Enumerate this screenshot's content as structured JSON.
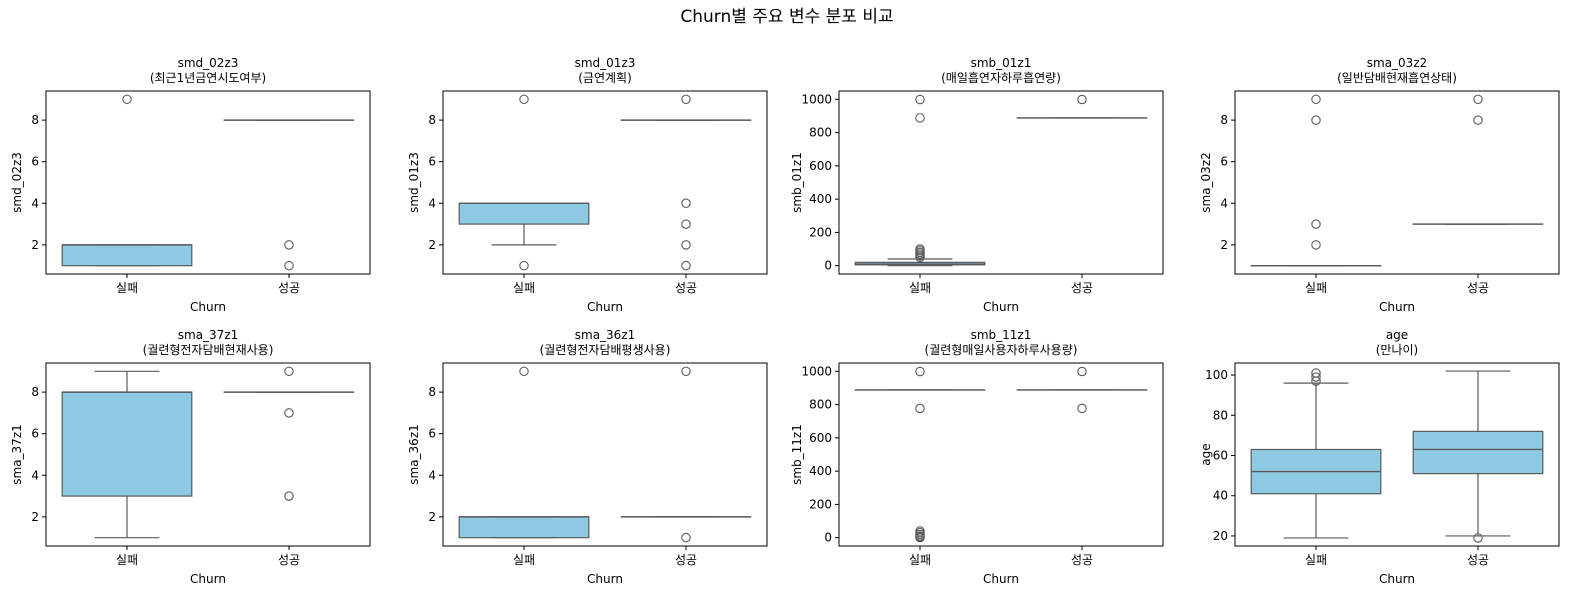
{
  "figure_title": "Churn별 주요 변수 분포 비교",
  "colors": {
    "box_fill": "#8ecae4",
    "line": "#5a5a5a",
    "frame": "#000000"
  },
  "chart_data": [
    {
      "type": "box",
      "title_line1": "smd_02z3",
      "title_line2": "(최근1년금연시도여부)",
      "xlabel": "Churn",
      "ylabel": "smd_02z3",
      "categories": [
        "실패",
        "성공"
      ],
      "ylim": [
        0.6,
        9.4
      ],
      "yticks": [
        2,
        4,
        6,
        8
      ],
      "boxes": [
        {
          "q1": 1,
          "median": 2,
          "q3": 2,
          "whisker_low": 1,
          "whisker_high": 2,
          "outliers": [
            9
          ]
        },
        {
          "q1": 8,
          "median": 8,
          "q3": 8,
          "whisker_low": 8,
          "whisker_high": 8,
          "outliers": [
            1,
            2
          ]
        }
      ]
    },
    {
      "type": "box",
      "title_line1": "smd_01z3",
      "title_line2": "(금연계획)",
      "xlabel": "Churn",
      "ylabel": "smd_01z3",
      "categories": [
        "실패",
        "성공"
      ],
      "ylim": [
        0.6,
        9.4
      ],
      "yticks": [
        2,
        4,
        6,
        8
      ],
      "boxes": [
        {
          "q1": 3,
          "median": 4,
          "q3": 4,
          "whisker_low": 2,
          "whisker_high": 4,
          "outliers": [
            1,
            9
          ]
        },
        {
          "q1": 8,
          "median": 8,
          "q3": 8,
          "whisker_low": 8,
          "whisker_high": 8,
          "outliers": [
            1,
            2,
            3,
            4,
            9
          ]
        }
      ]
    },
    {
      "type": "box",
      "title_line1": "smb_01z1",
      "title_line2": "(매일흡연자하루흡연량)",
      "xlabel": "Churn",
      "ylabel": "smb_01z1",
      "categories": [
        "실패",
        "성공"
      ],
      "ylim": [
        -50,
        1050
      ],
      "yticks": [
        0,
        200,
        400,
        600,
        800,
        1000
      ],
      "boxes": [
        {
          "q1": 5,
          "median": 10,
          "q3": 20,
          "whisker_low": 0,
          "whisker_high": 40,
          "outliers": [
            50,
            60,
            70,
            80,
            90,
            100,
            888,
            999
          ]
        },
        {
          "q1": 888,
          "median": 888,
          "q3": 888,
          "whisker_low": 888,
          "whisker_high": 888,
          "outliers": [
            999
          ]
        }
      ]
    },
    {
      "type": "box",
      "title_line1": "sma_03z2",
      "title_line2": "(일반담배현재흡연상태)",
      "xlabel": "Churn",
      "ylabel": "sma_03z2",
      "categories": [
        "실패",
        "성공"
      ],
      "ylim": [
        0.6,
        9.4
      ],
      "yticks": [
        2,
        4,
        6,
        8
      ],
      "boxes": [
        {
          "q1": 1,
          "median": 1,
          "q3": 1,
          "whisker_low": 1,
          "whisker_high": 1,
          "outliers": [
            2,
            3,
            8,
            9
          ]
        },
        {
          "q1": 3,
          "median": 3,
          "q3": 3,
          "whisker_low": 3,
          "whisker_high": 3,
          "outliers": [
            8,
            9
          ]
        }
      ]
    },
    {
      "type": "box",
      "title_line1": "sma_37z1",
      "title_line2": "(궐련형전자담배현재사용)",
      "xlabel": "Churn",
      "ylabel": "sma_37z1",
      "categories": [
        "실패",
        "성공"
      ],
      "ylim": [
        0.6,
        9.4
      ],
      "yticks": [
        2,
        4,
        6,
        8
      ],
      "boxes": [
        {
          "q1": 3,
          "median": 8,
          "q3": 8,
          "whisker_low": 1,
          "whisker_high": 9,
          "outliers": []
        },
        {
          "q1": 8,
          "median": 8,
          "q3": 8,
          "whisker_low": 8,
          "whisker_high": 8,
          "outliers": [
            3,
            7,
            9
          ]
        }
      ]
    },
    {
      "type": "box",
      "title_line1": "sma_36z1",
      "title_line2": "(궐련형전자담배평생사용)",
      "xlabel": "Churn",
      "ylabel": "sma_36z1",
      "categories": [
        "실패",
        "성공"
      ],
      "ylim": [
        0.6,
        9.4
      ],
      "yticks": [
        2,
        4,
        6,
        8
      ],
      "boxes": [
        {
          "q1": 1,
          "median": 2,
          "q3": 2,
          "whisker_low": 1,
          "whisker_high": 2,
          "outliers": [
            9
          ]
        },
        {
          "q1": 2,
          "median": 2,
          "q3": 2,
          "whisker_low": 2,
          "whisker_high": 2,
          "outliers": [
            1,
            9
          ]
        }
      ]
    },
    {
      "type": "box",
      "title_line1": "smb_11z1",
      "title_line2": "(궐련형매일사용자하루사용량)",
      "xlabel": "Churn",
      "ylabel": "smb_11z1",
      "categories": [
        "실패",
        "성공"
      ],
      "ylim": [
        -50,
        1050
      ],
      "yticks": [
        0,
        200,
        400,
        600,
        800,
        1000
      ],
      "boxes": [
        {
          "q1": 888,
          "median": 888,
          "q3": 888,
          "whisker_low": 888,
          "whisker_high": 888,
          "outliers": [
            0,
            5,
            10,
            20,
            30,
            40,
            777,
            999
          ]
        },
        {
          "q1": 888,
          "median": 888,
          "q3": 888,
          "whisker_low": 888,
          "whisker_high": 888,
          "outliers": [
            777,
            999
          ]
        }
      ]
    },
    {
      "type": "box",
      "title_line1": "age",
      "title_line2": "(만나이)",
      "xlabel": "Churn",
      "ylabel": "age",
      "categories": [
        "실패",
        "성공"
      ],
      "ylim": [
        15,
        106
      ],
      "yticks": [
        20,
        40,
        60,
        80,
        100
      ],
      "boxes": [
        {
          "q1": 41,
          "median": 52,
          "q3": 63,
          "whisker_low": 19,
          "whisker_high": 96,
          "outliers": [
            97,
            99,
            101
          ]
        },
        {
          "q1": 51,
          "median": 63,
          "q3": 72,
          "whisker_low": 20,
          "whisker_high": 102,
          "outliers": [
            19
          ]
        }
      ]
    }
  ]
}
